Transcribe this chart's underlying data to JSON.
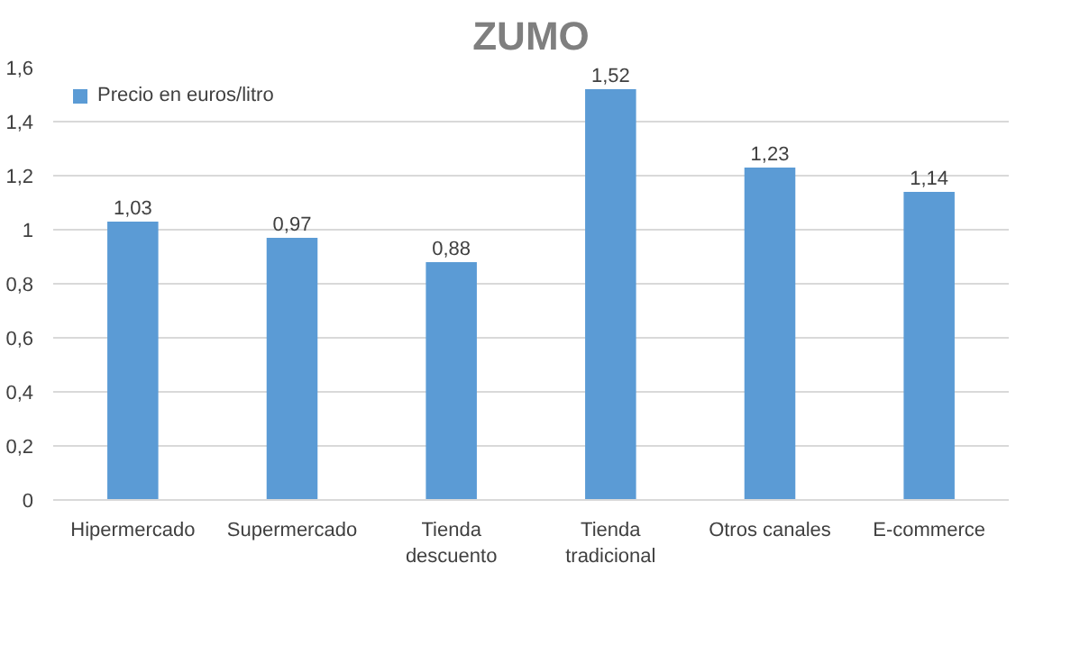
{
  "chart_data": {
    "type": "bar",
    "title": "ZUMO",
    "categories": [
      "Hipermercado",
      "Supermercado",
      "Tienda\ndescuento",
      "Tienda\ntradicional",
      "Otros canales",
      "E-commerce"
    ],
    "series": [
      {
        "name": "Precio en euros/litro",
        "color": "#5b9bd5",
        "values": [
          1.03,
          0.97,
          0.88,
          1.52,
          1.23,
          1.14
        ],
        "value_labels": [
          "1,03",
          "0,97",
          "0,88",
          "1,52",
          "1,23",
          "1,14"
        ]
      }
    ],
    "ylim": [
      0,
      1.6
    ],
    "yticks": [
      0,
      {
        "value": 0.2,
        "label": "0,2"
      },
      {
        "value": 0.4,
        "label": "0,4"
      },
      {
        "value": 0.6,
        "label": "0,6"
      },
      {
        "value": 0.8,
        "label": "0,8"
      },
      1,
      {
        "value": 1.2,
        "label": "1,2"
      },
      {
        "value": 1.4,
        "label": "1,4"
      },
      {
        "value": 1.6,
        "label": "1,6"
      }
    ],
    "grid": "y",
    "legend": "top left"
  }
}
